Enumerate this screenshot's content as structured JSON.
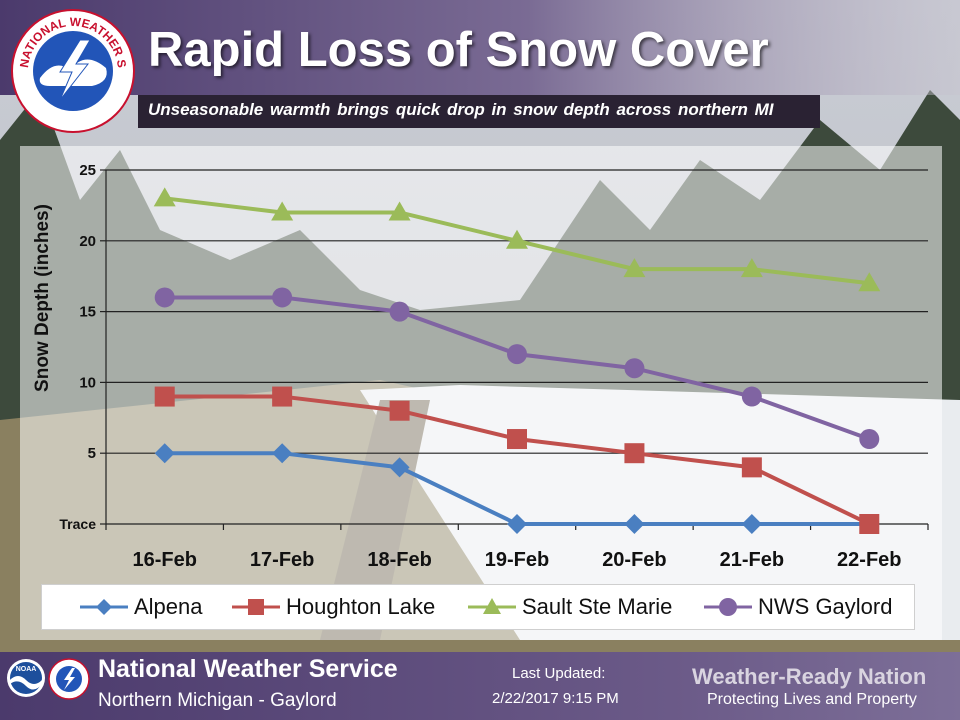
{
  "header": {
    "title": "Rapid Loss of Snow Cover",
    "subtitle": "Unseasonable  warmth brings quick drop in snow depth across northern  MI",
    "logo_text": "NATIONAL WEATHER SERVICE"
  },
  "footer": {
    "org": "National Weather Service",
    "office": "Northern  Michigan  - Gaylord",
    "updated_label": "Last Updated:",
    "updated_value": "2/22/2017 9:15 PM",
    "wrn": "Weather-Ready Nation",
    "wrn_tagline": "Protecting Lives and Property",
    "noaa_text": "NOAA"
  },
  "chart_data": {
    "type": "line",
    "title": "Rapid Loss of Snow Cover",
    "xlabel": "",
    "ylabel": "Snow Depth (inches)",
    "categories": [
      "16-Feb",
      "17-Feb",
      "18-Feb",
      "19-Feb",
      "20-Feb",
      "21-Feb",
      "22-Feb"
    ],
    "ylim": [
      0,
      25
    ],
    "yticks": [
      {
        "value": 0,
        "label": "Trace"
      },
      {
        "value": 5,
        "label": "5"
      },
      {
        "value": 10,
        "label": "10"
      },
      {
        "value": 15,
        "label": "15"
      },
      {
        "value": 20,
        "label": "20"
      },
      {
        "value": 25,
        "label": "25"
      }
    ],
    "grid": true,
    "legend_position": "bottom",
    "series": [
      {
        "name": "Alpena",
        "values": [
          5,
          5,
          4,
          0,
          0,
          0,
          0
        ],
        "color": "#4a7fc1",
        "marker": "diamond"
      },
      {
        "name": "Houghton Lake",
        "values": [
          9,
          9,
          8,
          6,
          5,
          4,
          0
        ],
        "color": "#c0504d",
        "marker": "square"
      },
      {
        "name": "Sault Ste Marie",
        "values": [
          23,
          22,
          22,
          20,
          18,
          18,
          17
        ],
        "color": "#9bbb59",
        "marker": "triangle"
      },
      {
        "name": "NWS Gaylord",
        "values": [
          16,
          16,
          15,
          12,
          11,
          9,
          6
        ],
        "color": "#8064a2",
        "marker": "circle"
      }
    ],
    "marker_visible_points": {
      "Alpena": [
        0,
        1,
        2,
        3,
        4,
        5
      ]
    }
  }
}
